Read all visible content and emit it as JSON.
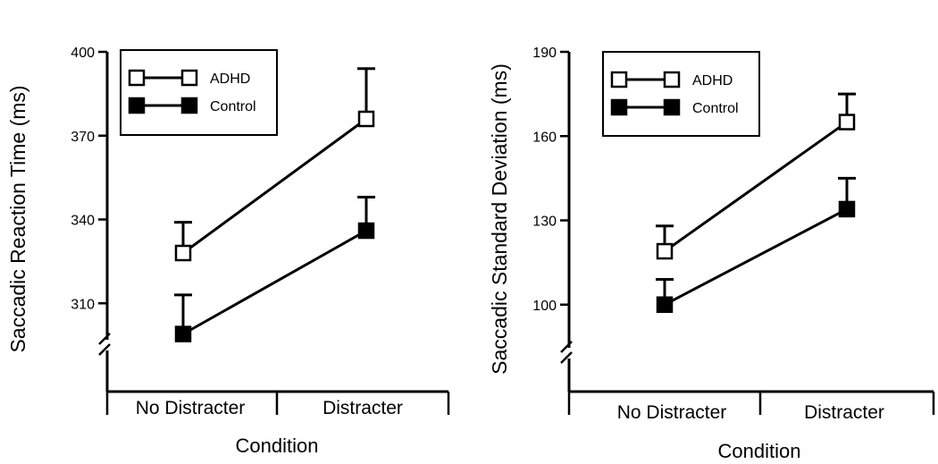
{
  "chart_data": [
    {
      "type": "line",
      "title": "",
      "xlabel": "Condition",
      "ylabel": "Saccadic Reaction Time (ms)",
      "categories": [
        "No Distracter",
        "Distracter"
      ],
      "yticks": [
        310,
        340,
        370,
        400
      ],
      "ytick_labels": [
        "310",
        "340",
        "370",
        "400"
      ],
      "ylim": [
        280,
        400
      ],
      "axis_break": true,
      "grid": false,
      "legend_position": "top-left",
      "series": [
        {
          "name": "ADHD",
          "marker": "open-square",
          "values": [
            328,
            376
          ],
          "error": [
            11,
            18
          ]
        },
        {
          "name": "Control",
          "marker": "filled-square",
          "values": [
            299,
            336
          ],
          "error": [
            14,
            12
          ]
        }
      ]
    },
    {
      "type": "line",
      "title": "",
      "xlabel": "Condition",
      "ylabel": "Saccadic Standard Deviation (ms)",
      "categories": [
        "No Distracter",
        "Distracter"
      ],
      "yticks": [
        100,
        130,
        160,
        190
      ],
      "ytick_labels": [
        "100",
        "130",
        "160",
        "190"
      ],
      "ylim": [
        70,
        190
      ],
      "axis_break": true,
      "grid": false,
      "legend_position": "top-left",
      "series": [
        {
          "name": "ADHD",
          "marker": "open-square",
          "values": [
            119,
            165
          ],
          "error": [
            9,
            10
          ]
        },
        {
          "name": "Control",
          "marker": "filled-square",
          "values": [
            100,
            134
          ],
          "error": [
            9,
            11
          ]
        }
      ]
    }
  ]
}
